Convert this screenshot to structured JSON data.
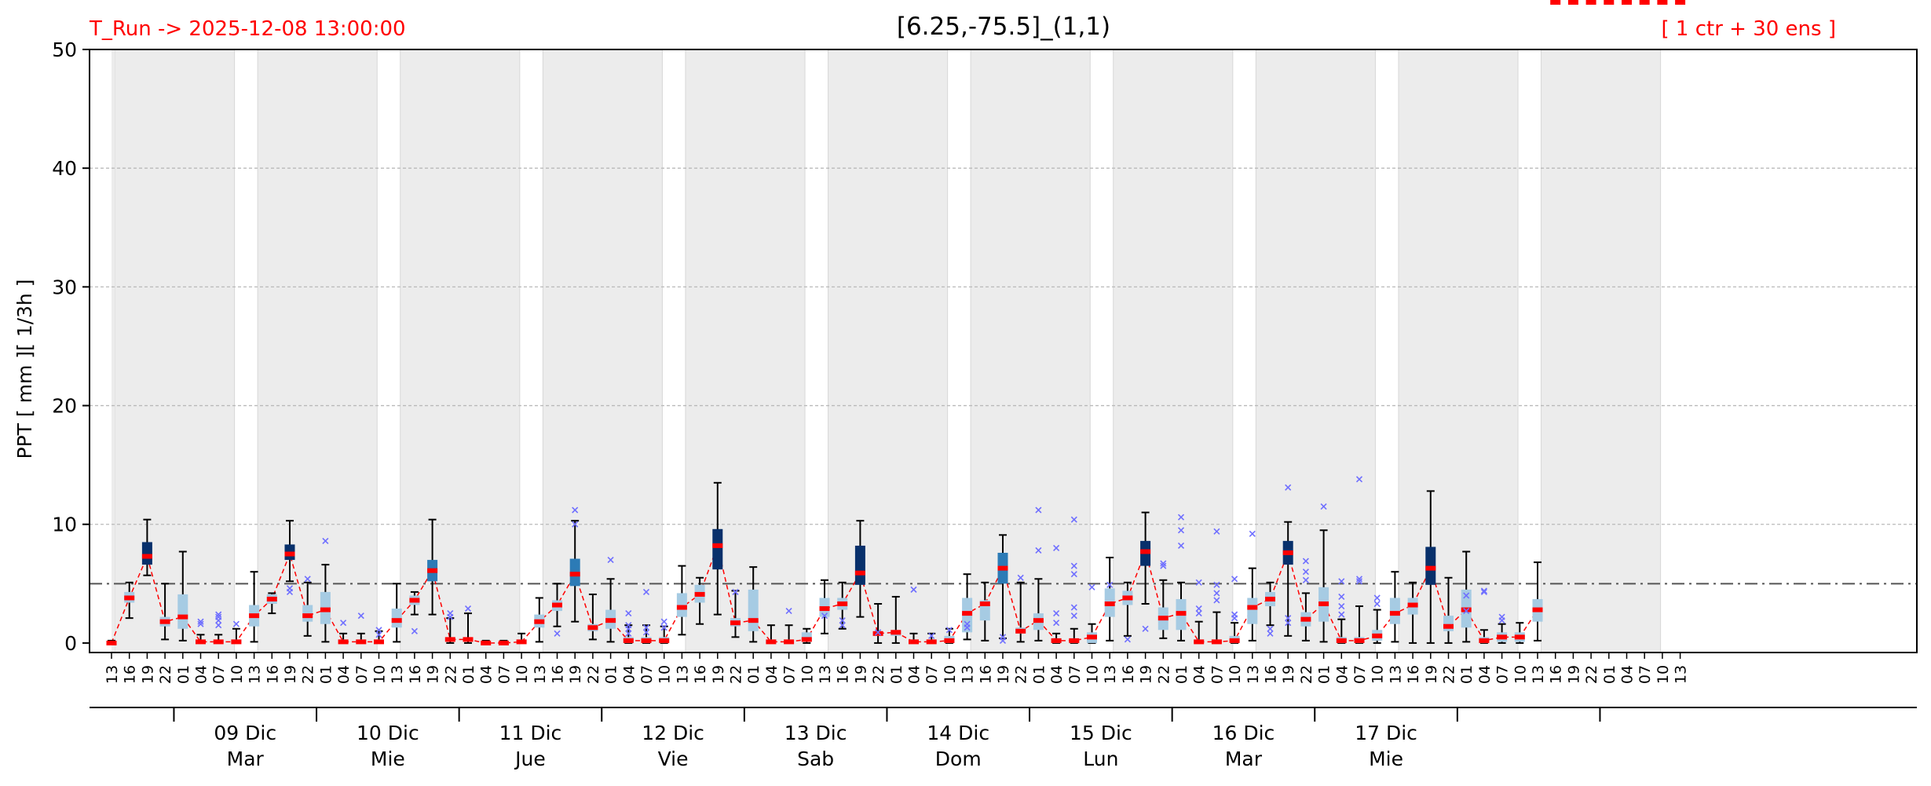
{
  "header": {
    "run_label": "T_Run -> 2025-12-08  13:00:00",
    "title": "[6.25,-75.5]_(1,1)",
    "ensemble_label": "[ 1 ctr + 30 ens ]"
  },
  "colors": {
    "red": "#ff0000",
    "night_shade": "#ececec",
    "box_low": "#a6cbe3",
    "box_mid": "#2c7bb6",
    "box_high": "#08306b",
    "outlier": "#6f6fff",
    "threshold": "#555555"
  },
  "chart_data": {
    "type": "box",
    "ylabel": "PPT  [ mm ][ 1/3h ]",
    "ylim": [
      0,
      50
    ],
    "yticks": [
      0,
      10,
      20,
      30,
      40,
      50
    ],
    "threshold": 5,
    "grid": "horizontal-dashed",
    "hour_labels": [
      "13",
      "16",
      "19",
      "22",
      "01",
      "04",
      "07",
      "10",
      "13",
      "16",
      "19",
      "22",
      "01",
      "04",
      "07",
      "10",
      "13",
      "16",
      "19",
      "22",
      "01",
      "04",
      "07",
      "10",
      "13",
      "16",
      "19",
      "22",
      "01",
      "04",
      "07",
      "10",
      "13",
      "16",
      "19",
      "22",
      "01",
      "04",
      "07",
      "10",
      "13",
      "16",
      "19",
      "22",
      "01",
      "04",
      "07",
      "10",
      "13",
      "16",
      "19",
      "22",
      "01",
      "04",
      "07",
      "10",
      "13",
      "16",
      "19",
      "22",
      "01",
      "04",
      "07",
      "10",
      "13",
      "16",
      "19",
      "22",
      "01",
      "04",
      "07",
      "10",
      "13",
      "16",
      "19",
      "22",
      "01",
      "04",
      "07",
      "10",
      "13",
      "16",
      "19",
      "22",
      "01",
      "04",
      "07",
      "10",
      "13"
    ],
    "days": [
      {
        "date": "09 Dic",
        "weekday": "Mar"
      },
      {
        "date": "10 Dic",
        "weekday": "Mie"
      },
      {
        "date": "11 Dic",
        "weekday": "Jue"
      },
      {
        "date": "12 Dic",
        "weekday": "Vie"
      },
      {
        "date": "13 Dic",
        "weekday": "Sab"
      },
      {
        "date": "14 Dic",
        "weekday": "Dom"
      },
      {
        "date": "15 Dic",
        "weekday": "Lun"
      },
      {
        "date": "16 Dic",
        "weekday": "Mar"
      },
      {
        "date": "17 Dic",
        "weekday": "Mie"
      }
    ],
    "median": [
      0,
      3.8,
      7.3,
      1.8,
      2.2,
      0.1,
      0.1,
      0.1,
      2.3,
      3.7,
      7.5,
      2.3,
      2.8,
      0.1,
      0.1,
      0.1,
      1.9,
      3.6,
      6.1,
      0.3,
      0.3,
      0,
      0,
      0.1,
      1.8,
      3.2,
      5.8,
      1.3,
      1.9,
      0.2,
      0.2,
      0.2,
      3,
      4.1,
      8.2,
      1.7,
      1.9,
      0.1,
      0.1,
      0.3,
      2.9,
      3.3,
      5.9,
      0.8,
      0.9,
      0.1,
      0.1,
      0.2,
      2.5,
      3.3,
      6.3,
      1,
      1.9,
      0.2,
      0.2,
      0.5,
      3.3,
      3.8,
      7.7,
      2.1,
      2.5,
      0.1,
      0.1,
      0.2,
      3,
      3.7,
      7.6,
      2,
      3.3,
      0.2,
      0.2,
      0.6,
      2.5,
      3.2,
      6.3,
      1.4,
      2.8,
      0.2,
      0.5,
      0.5,
      2.8
    ],
    "q1": [
      0,
      3.4,
      6.6,
      1.4,
      1.2,
      0,
      0,
      0,
      1.4,
      3.3,
      7,
      1.8,
      1.6,
      0,
      0,
      0,
      1.3,
      3.2,
      5.2,
      0.2,
      0.2,
      0,
      0,
      0,
      1.3,
      2.7,
      4.8,
      1,
      1.2,
      0,
      0,
      0,
      2.2,
      3.4,
      6.2,
      1.4,
      1,
      0,
      0,
      0.1,
      2.2,
      2.8,
      4.9,
      0.6,
      0.6,
      0,
      0,
      0,
      0.9,
      1.9,
      5,
      0.8,
      1.1,
      0,
      0,
      0,
      2.2,
      3.2,
      6.5,
      1.1,
      1.1,
      0,
      0,
      0,
      1.6,
      3.1,
      6.6,
      1.4,
      1.8,
      0,
      0,
      0.2,
      1.6,
      2.4,
      4.9,
      1,
      1.3,
      0,
      0.1,
      0.1,
      1.8
    ],
    "q3": [
      0.1,
      4.3,
      8.5,
      2.2,
      4.1,
      0.2,
      0.2,
      0.3,
      3.2,
      4.1,
      8.3,
      3.2,
      4.3,
      0.3,
      0.3,
      0.3,
      2.9,
      4,
      7,
      0.4,
      0.4,
      0.1,
      0.1,
      0.3,
      2.4,
      3.6,
      7.1,
      1.6,
      2.8,
      0.5,
      0.5,
      0.5,
      4.2,
      4.9,
      9.6,
      2.1,
      4.5,
      0.3,
      0.3,
      0.9,
      3.8,
      3.8,
      8.2,
      1,
      1.1,
      0.3,
      0.3,
      0.6,
      3.8,
      3.6,
      7.6,
      1.3,
      2.5,
      0.4,
      0.4,
      0.9,
      4.6,
      4.4,
      8.6,
      3,
      3.7,
      0.3,
      0.3,
      0.6,
      3.8,
      4.3,
      8.6,
      2.6,
      4.7,
      0.5,
      0.5,
      1.1,
      3.8,
      3.8,
      8.1,
      2.3,
      4.5,
      0.5,
      0.9,
      0.9,
      3.7
    ],
    "lo": [
      0,
      2.1,
      5.7,
      0.3,
      0.2,
      0,
      0,
      0,
      0.1,
      2.5,
      5.2,
      0.6,
      0.1,
      0,
      0,
      0,
      0.1,
      2.4,
      2.4,
      0,
      0,
      0,
      0,
      0,
      0.1,
      1.4,
      1.8,
      0.3,
      0.1,
      0,
      0,
      0,
      0.7,
      1.6,
      2.4,
      0.5,
      0.1,
      0,
      0,
      0,
      0.8,
      1.2,
      2.2,
      0,
      0,
      0,
      0,
      0,
      0.3,
      0.2,
      0.4,
      0.1,
      0.2,
      0,
      0,
      0,
      0.2,
      0.6,
      3.3,
      0.4,
      0.2,
      0,
      0,
      0,
      0.2,
      1.5,
      0.6,
      0.2,
      0.1,
      0,
      0,
      0,
      0.1,
      0,
      0,
      0,
      0.1,
      0,
      0,
      0,
      0.2
    ],
    "hi": [
      0.2,
      5.1,
      10.4,
      5,
      7.7,
      0.7,
      0.7,
      1.2,
      6,
      4.2,
      10.3,
      5.1,
      6.6,
      0.8,
      0.8,
      1,
      5,
      4.3,
      10.4,
      2.1,
      2.5,
      0.2,
      0.2,
      0.8,
      3.8,
      5,
      10.3,
      4.1,
      5.4,
      1.5,
      1.5,
      1.4,
      6.5,
      5.5,
      13.5,
      4.4,
      6.4,
      1.5,
      1.5,
      1.2,
      5.3,
      5.1,
      10.3,
      3.3,
      3.9,
      0.8,
      0.8,
      1.2,
      5.8,
      5.1,
      9.1,
      5.1,
      5.4,
      0.8,
      1.2,
      1.6,
      7.2,
      5.1,
      11,
      5.3,
      5.1,
      1.8,
      2.6,
      1.7,
      6.3,
      5.1,
      10.2,
      4.2,
      9.5,
      2,
      3.1,
      2.8,
      6,
      5.1,
      12.8,
      5.5,
      7.7,
      1.1,
      1.6,
      1.7,
      6.8
    ],
    "outliers": [
      {
        "i": 5,
        "y": 1.8
      },
      {
        "i": 5,
        "y": 1.6
      },
      {
        "i": 6,
        "y": 1.5
      },
      {
        "i": 6,
        "y": 1.9
      },
      {
        "i": 6,
        "y": 2.2
      },
      {
        "i": 6,
        "y": 2.4
      },
      {
        "i": 7,
        "y": 1.6
      },
      {
        "i": 10,
        "y": 4.3
      },
      {
        "i": 10,
        "y": 4.6
      },
      {
        "i": 11,
        "y": 5.4
      },
      {
        "i": 12,
        "y": 8.6
      },
      {
        "i": 13,
        "y": 1.7
      },
      {
        "i": 14,
        "y": 2.3
      },
      {
        "i": 15,
        "y": 1.1
      },
      {
        "i": 15,
        "y": 0.7
      },
      {
        "i": 17,
        "y": 1
      },
      {
        "i": 19,
        "y": 2.2
      },
      {
        "i": 19,
        "y": 2.5
      },
      {
        "i": 20,
        "y": 2.9
      },
      {
        "i": 26,
        "y": 11.2
      },
      {
        "i": 26,
        "y": 10
      },
      {
        "i": 25,
        "y": 0.8
      },
      {
        "i": 28,
        "y": 7
      },
      {
        "i": 29,
        "y": 2.5
      },
      {
        "i": 29,
        "y": 1.5
      },
      {
        "i": 29,
        "y": 1.2
      },
      {
        "i": 29,
        "y": 0.8
      },
      {
        "i": 30,
        "y": 4.3
      },
      {
        "i": 30,
        "y": 1.3
      },
      {
        "i": 30,
        "y": 0.9
      },
      {
        "i": 31,
        "y": 1.8
      },
      {
        "i": 31,
        "y": 1.3
      },
      {
        "i": 35,
        "y": 4.3
      },
      {
        "i": 38,
        "y": 2.7
      },
      {
        "i": 40,
        "y": 2.3
      },
      {
        "i": 41,
        "y": 1.5
      },
      {
        "i": 41,
        "y": 1.9
      },
      {
        "i": 43,
        "y": 0.9
      },
      {
        "i": 45,
        "y": 4.5
      },
      {
        "i": 46,
        "y": 0.6
      },
      {
        "i": 47,
        "y": 1.1
      },
      {
        "i": 48,
        "y": 1.6
      },
      {
        "i": 48,
        "y": 1.3
      },
      {
        "i": 50,
        "y": 0.2
      },
      {
        "i": 50,
        "y": 0.5
      },
      {
        "i": 51,
        "y": 5.5
      },
      {
        "i": 52,
        "y": 7.8
      },
      {
        "i": 52,
        "y": 11.2
      },
      {
        "i": 53,
        "y": 2.5
      },
      {
        "i": 53,
        "y": 8
      },
      {
        "i": 53,
        "y": 1.7
      },
      {
        "i": 54,
        "y": 10.4
      },
      {
        "i": 54,
        "y": 6.5
      },
      {
        "i": 54,
        "y": 5.8
      },
      {
        "i": 54,
        "y": 3
      },
      {
        "i": 54,
        "y": 2.3
      },
      {
        "i": 55,
        "y": 4.7
      },
      {
        "i": 56,
        "y": 4.9
      },
      {
        "i": 57,
        "y": 0.3
      },
      {
        "i": 58,
        "y": 1.2
      },
      {
        "i": 59,
        "y": 6.7
      },
      {
        "i": 59,
        "y": 6.5
      },
      {
        "i": 60,
        "y": 10.6
      },
      {
        "i": 60,
        "y": 9.5
      },
      {
        "i": 60,
        "y": 8.2
      },
      {
        "i": 61,
        "y": 5.1
      },
      {
        "i": 61,
        "y": 2.9
      },
      {
        "i": 61,
        "y": 2.5
      },
      {
        "i": 62,
        "y": 4.9
      },
      {
        "i": 62,
        "y": 4.2
      },
      {
        "i": 62,
        "y": 3.6
      },
      {
        "i": 62,
        "y": 9.4
      },
      {
        "i": 63,
        "y": 2.4
      },
      {
        "i": 63,
        "y": 2.1
      },
      {
        "i": 63,
        "y": 5.4
      },
      {
        "i": 64,
        "y": 9.2
      },
      {
        "i": 65,
        "y": 1.2
      },
      {
        "i": 65,
        "y": 0.8
      },
      {
        "i": 66,
        "y": 13.1
      },
      {
        "i": 66,
        "y": 2.1
      },
      {
        "i": 66,
        "y": 1.7
      },
      {
        "i": 67,
        "y": 6.9
      },
      {
        "i": 67,
        "y": 6
      },
      {
        "i": 67,
        "y": 5.3
      },
      {
        "i": 68,
        "y": 11.5
      },
      {
        "i": 69,
        "y": 5.2
      },
      {
        "i": 69,
        "y": 3.9
      },
      {
        "i": 69,
        "y": 3.1
      },
      {
        "i": 69,
        "y": 2.4
      },
      {
        "i": 70,
        "y": 13.8
      },
      {
        "i": 70,
        "y": 5.4
      },
      {
        "i": 70,
        "y": 5.2
      },
      {
        "i": 71,
        "y": 3.8
      },
      {
        "i": 71,
        "y": 3.3
      },
      {
        "i": 76,
        "y": 4
      },
      {
        "i": 76,
        "y": 2.7
      },
      {
        "i": 77,
        "y": 4.4
      },
      {
        "i": 77,
        "y": 4.3
      },
      {
        "i": 78,
        "y": 2.2
      },
      {
        "i": 78,
        "y": 1.9
      }
    ]
  }
}
